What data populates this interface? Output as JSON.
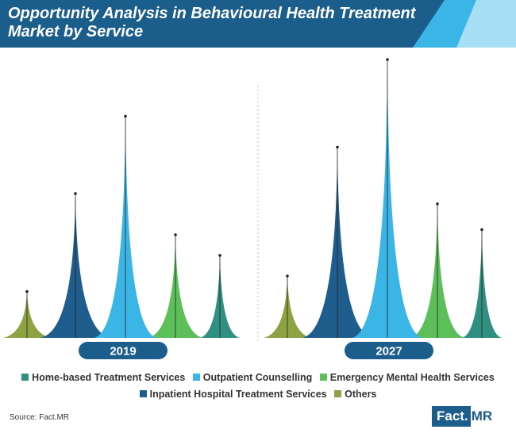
{
  "title": "Opportunity Analysis in Behavioural Health Treatment Market by Service",
  "source": "Source: Fact.MR",
  "brand": {
    "part1": "Fact.",
    "part2": "MR"
  },
  "chart_data": {
    "type": "area",
    "title": "Opportunity Analysis in Behavioural Health Treatment Market by Service",
    "y_axis_shown": false,
    "grid": false,
    "legend_placement": "bottom",
    "categories": [
      "Others",
      "Inpatient Hospital Treatment Services",
      "Outpatient Counselling",
      "Emergency Mental Health Services",
      "Home-based Treatment Services"
    ],
    "colors": {
      "Home-based Treatment Services": "#2f8f80",
      "Outpatient Counselling": "#3bb5e6",
      "Emergency Mental Health Services": "#5cbf5a",
      "Inpatient Hospital Treatment Services": "#1e5d8c",
      "Others": "#8da343"
    },
    "series": [
      {
        "name": "2019",
        "values": [
          0.9,
          2.8,
          4.3,
          2.0,
          1.6
        ]
      },
      {
        "name": "2027",
        "values": [
          1.2,
          3.7,
          5.4,
          2.6,
          2.1
        ]
      }
    ],
    "legend": [
      "Home-based Treatment Services",
      "Outpatient Counselling",
      "Emergency Mental Health Services",
      "Inpatient Hospital Treatment Services",
      "Others"
    ]
  }
}
